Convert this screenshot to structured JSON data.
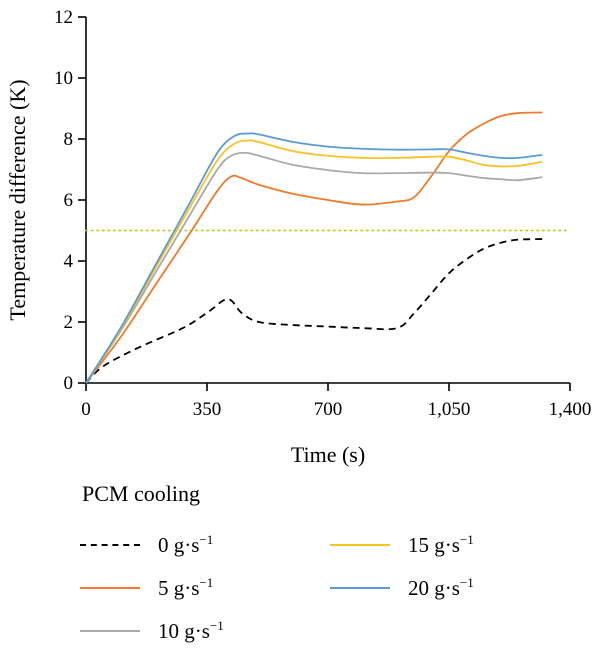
{
  "chart_data": {
    "type": "line",
    "title": "",
    "xlabel": "Time (s)",
    "ylabel": "Temperature difference (K)",
    "xlim": [
      0,
      1400
    ],
    "ylim": [
      0,
      12
    ],
    "xticks": [
      0,
      350,
      700,
      1050,
      1400
    ],
    "xtick_labels": [
      "0",
      "350",
      "700",
      "1,050",
      "1,400"
    ],
    "yticks": [
      0,
      2,
      4,
      6,
      8,
      10,
      12
    ],
    "ytick_labels": [
      "0",
      "2",
      "4",
      "6",
      "8",
      "10",
      "12"
    ],
    "grid": false,
    "reference_line": {
      "y": 5,
      "style": "dotted",
      "color": "#b5d334"
    },
    "legend": {
      "title": "PCM cooling",
      "placement": "bottom",
      "unit": "g·s",
      "unit_exponent": "−1"
    },
    "series": [
      {
        "name": "0",
        "color": "#000000",
        "dash": "dashed",
        "x": [
          0,
          50,
          150,
          280,
          350,
          410,
          450,
          500,
          600,
          700,
          800,
          900,
          950,
          1000,
          1050,
          1100,
          1150,
          1200,
          1250,
          1320
        ],
        "y": [
          0,
          0.55,
          1.15,
          1.8,
          2.3,
          2.75,
          2.3,
          2.0,
          1.9,
          1.85,
          1.8,
          1.8,
          2.3,
          2.95,
          3.6,
          4.05,
          4.4,
          4.6,
          4.7,
          4.72
        ]
      },
      {
        "name": "5",
        "color": "#ef7a2b",
        "dash": "solid",
        "x": [
          0,
          100,
          200,
          300,
          380,
          420,
          450,
          500,
          600,
          700,
          800,
          900,
          950,
          1000,
          1050,
          1100,
          1150,
          1200,
          1250,
          1320
        ],
        "y": [
          0,
          1.5,
          3.2,
          4.9,
          6.3,
          6.77,
          6.72,
          6.5,
          6.2,
          6.0,
          5.85,
          5.95,
          6.1,
          6.8,
          7.6,
          8.15,
          8.5,
          8.75,
          8.85,
          8.87
        ]
      },
      {
        "name": "10",
        "color": "#a9a9a9",
        "dash": "solid",
        "x": [
          0,
          100,
          200,
          300,
          380,
          420,
          460,
          500,
          600,
          700,
          800,
          900,
          1000,
          1050,
          1100,
          1150,
          1200,
          1250,
          1320
        ],
        "y": [
          0,
          1.7,
          3.6,
          5.5,
          7.0,
          7.45,
          7.55,
          7.45,
          7.15,
          6.98,
          6.88,
          6.88,
          6.9,
          6.88,
          6.8,
          6.72,
          6.68,
          6.65,
          6.75
        ]
      },
      {
        "name": "15",
        "color": "#f6c324",
        "dash": "solid",
        "x": [
          0,
          100,
          200,
          300,
          380,
          430,
          470,
          500,
          600,
          700,
          800,
          900,
          1000,
          1050,
          1100,
          1150,
          1200,
          1250,
          1320
        ],
        "y": [
          0,
          1.75,
          3.75,
          5.75,
          7.3,
          7.85,
          7.95,
          7.9,
          7.6,
          7.45,
          7.38,
          7.38,
          7.42,
          7.42,
          7.3,
          7.15,
          7.1,
          7.12,
          7.25
        ]
      },
      {
        "name": "20",
        "color": "#5b9bd5",
        "dash": "solid",
        "x": [
          0,
          100,
          200,
          300,
          380,
          430,
          470,
          500,
          600,
          700,
          800,
          900,
          1000,
          1050,
          1100,
          1150,
          1200,
          1250,
          1320
        ],
        "y": [
          0,
          1.8,
          3.85,
          5.9,
          7.55,
          8.1,
          8.18,
          8.15,
          7.9,
          7.75,
          7.68,
          7.65,
          7.66,
          7.66,
          7.55,
          7.45,
          7.38,
          7.38,
          7.48
        ]
      }
    ]
  }
}
